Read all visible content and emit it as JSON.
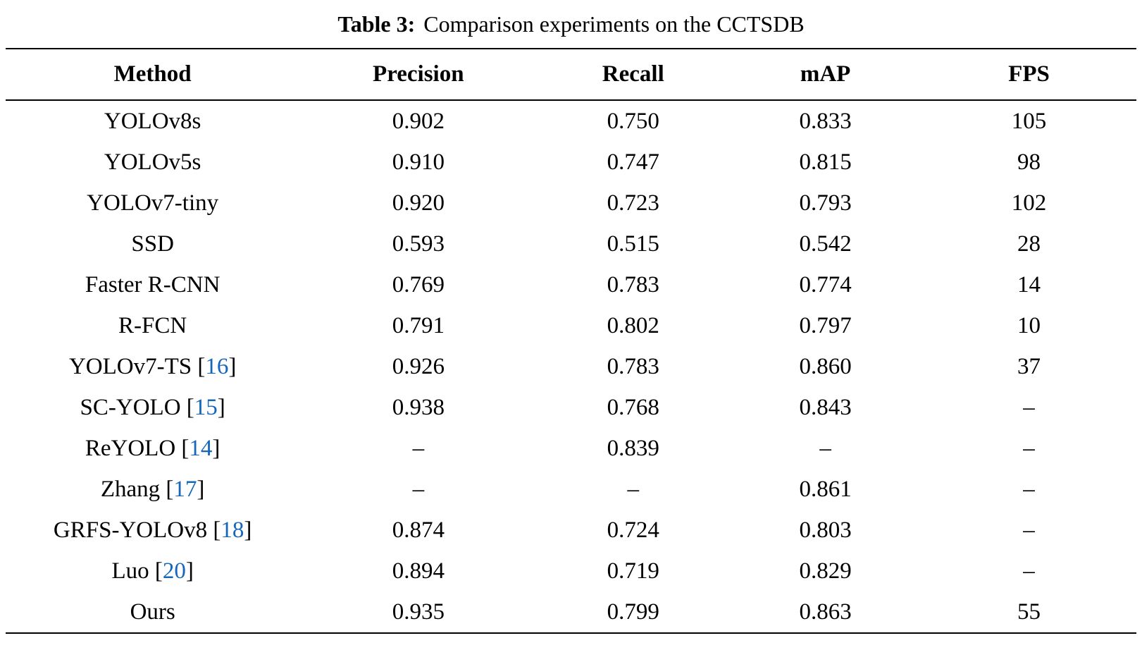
{
  "caption": {
    "label": "Table 3:",
    "text": "Comparison experiments on the CCTSDB"
  },
  "colors": {
    "text": "#000000",
    "background": "#ffffff",
    "citation": "#1666bb",
    "rule": "#000000"
  },
  "table": {
    "columns": [
      "Method",
      "Precision",
      "Recall",
      "mAP",
      "FPS"
    ],
    "rows": [
      {
        "method": "YOLOv8s",
        "citation": null,
        "precision": "0.902",
        "recall": "0.750",
        "map": "0.833",
        "fps": "105"
      },
      {
        "method": "YOLOv5s",
        "citation": null,
        "precision": "0.910",
        "recall": "0.747",
        "map": "0.815",
        "fps": "98"
      },
      {
        "method": "YOLOv7-tiny",
        "citation": null,
        "precision": "0.920",
        "recall": "0.723",
        "map": "0.793",
        "fps": "102"
      },
      {
        "method": "SSD",
        "citation": null,
        "precision": "0.593",
        "recall": "0.515",
        "map": "0.542",
        "fps": "28"
      },
      {
        "method": "Faster R-CNN",
        "citation": null,
        "precision": "0.769",
        "recall": "0.783",
        "map": "0.774",
        "fps": "14"
      },
      {
        "method": "R-FCN",
        "citation": null,
        "precision": "0.791",
        "recall": "0.802",
        "map": "0.797",
        "fps": "10"
      },
      {
        "method": "YOLOv7-TS",
        "citation": "16",
        "precision": "0.926",
        "recall": "0.783",
        "map": "0.860",
        "fps": "37"
      },
      {
        "method": "SC-YOLO",
        "citation": "15",
        "precision": "0.938",
        "recall": "0.768",
        "map": "0.843",
        "fps": "–"
      },
      {
        "method": "ReYOLO",
        "citation": "14",
        "precision": "–",
        "recall": "0.839",
        "map": "–",
        "fps": "–"
      },
      {
        "method": "Zhang",
        "citation": "17",
        "precision": "–",
        "recall": "–",
        "map": "0.861",
        "fps": "–"
      },
      {
        "method": "GRFS-YOLOv8",
        "citation": "18",
        "precision": "0.874",
        "recall": "0.724",
        "map": "0.803",
        "fps": "–"
      },
      {
        "method": "Luo",
        "citation": "20",
        "precision": "0.894",
        "recall": "0.719",
        "map": "0.829",
        "fps": "–"
      },
      {
        "method": "Ours",
        "citation": null,
        "precision": "0.935",
        "recall": "0.799",
        "map": "0.863",
        "fps": "55"
      }
    ]
  }
}
